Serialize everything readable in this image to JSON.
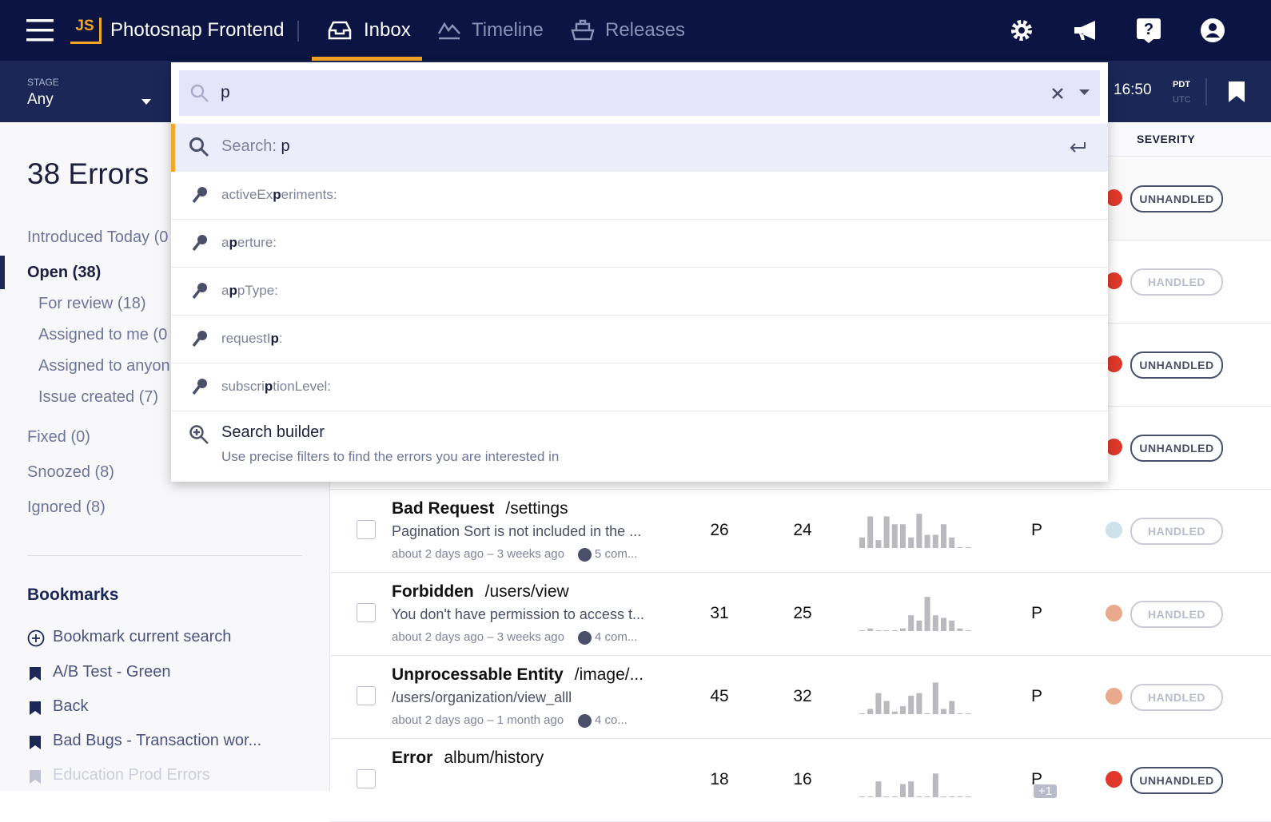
{
  "nav": {
    "logo": "JS",
    "project": "Photosnap Frontend",
    "tabs": [
      "Inbox",
      "Timeline",
      "Releases"
    ]
  },
  "filter_bar": {
    "stage_label": "STAGE",
    "stage_value": "Any",
    "time": "16:50",
    "timezones": [
      "PDT",
      "UTC"
    ]
  },
  "search": {
    "query": "p",
    "suggestion": {
      "label": "Search:",
      "query": "p"
    },
    "keys": [
      {
        "before": "activeEx",
        "match": "p",
        "after": "eriments:"
      },
      {
        "before": "a",
        "match": "p",
        "after": "erture:"
      },
      {
        "before": "a",
        "match": "p",
        "after": "pType:"
      },
      {
        "before": "requestI",
        "match": "p",
        "after": ":"
      },
      {
        "before": "subscri",
        "match": "p",
        "after": "tionLevel:"
      }
    ],
    "builder": {
      "title": "Search builder",
      "description": "Use precise filters to find the errors you are interested in"
    }
  },
  "sidebar": {
    "title": "38 Errors",
    "top": [
      "Introduced Today (0"
    ],
    "active": "Open (38)",
    "sub": [
      "For review (18)",
      "Assigned to me (0",
      "Assigned to anyon",
      "Issue created (7)"
    ],
    "rest": [
      "Fixed (0)",
      "Snoozed (8)",
      "Ignored (8)"
    ],
    "bookmarks": {
      "title": "Bookmarks",
      "add": "Bookmark current search",
      "items": [
        "A/B Test - Green",
        "Back",
        "Bad Bugs - Transaction wor...",
        "Education Prod Errors"
      ]
    }
  },
  "table": {
    "header": "SEVERITY",
    "rows": [
      {
        "severity": "UNHANDLED",
        "color": "#e0392b"
      },
      {
        "severity": "HANDLED",
        "color": "#e0392b"
      },
      {
        "severity": "UNHANDLED",
        "color": "#e0392b"
      },
      {
        "severity": "UNHANDLED",
        "color": "#e0392b"
      },
      {
        "type": "Bad Request",
        "location": "/settings",
        "message": "Pagination Sort is not included in the ...",
        "time": "about 2 days ago – 3 weeks ago",
        "comments": "5 com...",
        "events": "26",
        "users": "24",
        "assignee": "P",
        "trend": [
          4,
          12,
          3,
          12,
          9,
          9,
          4,
          13,
          5,
          5,
          9,
          4,
          0,
          0
        ],
        "severity": "HANDLED",
        "color": "#cde2ea"
      },
      {
        "type": "Forbidden",
        "location": "/users/view",
        "message": "You don't have permission to access t...",
        "time": "about 2 days ago – 3 weeks ago",
        "comments": "4 com...",
        "events": "31",
        "users": "25",
        "assignee": "P",
        "trend": [
          0,
          1,
          0,
          0,
          0,
          1,
          6,
          4,
          13,
          6,
          5,
          4,
          1,
          0
        ],
        "severity": "HANDLED",
        "color": "#eaa98c"
      },
      {
        "type": "Unprocessable Entity",
        "location": "/image/...",
        "message": "/users/organization/view_alll",
        "time": "about 2 days ago – 1 month ago",
        "comments": "4 co...",
        "events": "45",
        "users": "32",
        "assignee": "P",
        "trend": [
          0,
          2,
          8,
          5,
          1,
          3,
          7,
          8,
          0,
          12,
          2,
          5,
          0,
          0
        ],
        "severity": "HANDLED",
        "color": "#eaa98c"
      },
      {
        "type": "Error",
        "location": "album/history",
        "events": "18",
        "users": "16",
        "assignee": "P",
        "extra": "+1",
        "trend": [
          0,
          0,
          6,
          0,
          0,
          5,
          6,
          0,
          0,
          9,
          0,
          0,
          0,
          0
        ],
        "severity": "UNHANDLED",
        "color": "#e0392b"
      }
    ]
  }
}
